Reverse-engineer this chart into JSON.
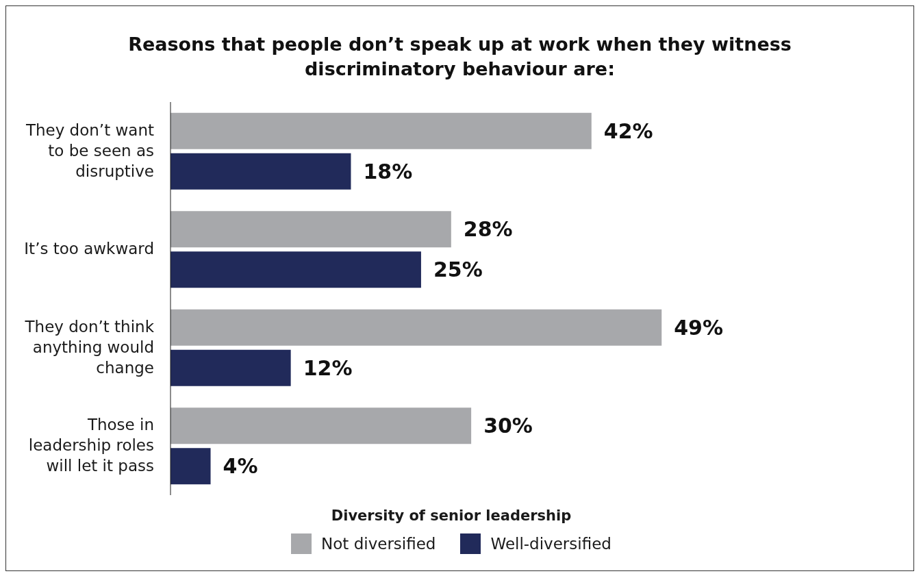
{
  "chart_data": {
    "type": "bar",
    "orientation": "horizontal",
    "title": "Reasons that people don’t speak up at work when they witness discriminatory behaviour are:",
    "categories": [
      "They don’t want to be seen as disruptive",
      "It’s too awkward",
      "They don’t think anything would change",
      "Those in leadership roles will let it pass"
    ],
    "series": [
      {
        "name": "Not diversified",
        "color": "#a7a8ab",
        "values": [
          42,
          28,
          49,
          30
        ],
        "value_labels": [
          "42%",
          "28%",
          "49%",
          "30%"
        ]
      },
      {
        "name": "Well-diversified",
        "color": "#212a5a",
        "values": [
          18,
          25,
          12,
          4
        ],
        "value_labels": [
          "18%",
          "25%",
          "12%",
          "4%"
        ]
      }
    ],
    "legend": "bottom",
    "legend_title": "Diversity of senior leadership",
    "grid": false
  }
}
